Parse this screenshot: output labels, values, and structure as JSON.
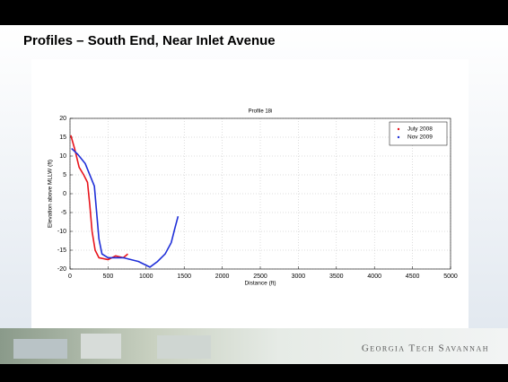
{
  "slide": {
    "title": "Profiles – South End, Near Inlet Avenue",
    "footer": "Georgia Tech Savannah"
  },
  "chart_data": {
    "type": "line",
    "title": "Profile 18i",
    "x_label": "Distance (ft)",
    "y_label": "Elevation above MLLW (ft)",
    "xlim": [
      0,
      5000
    ],
    "xticks": [
      0,
      500,
      1000,
      1500,
      2000,
      2500,
      3000,
      3500,
      4000,
      4500,
      5000
    ],
    "ylim": [
      -20,
      20
    ],
    "yticks": [
      -20,
      -15,
      -10,
      -5,
      0,
      5,
      10,
      15,
      20
    ],
    "grid": true,
    "legend": "upper right",
    "series": [
      {
        "name": "July 2008",
        "color": "#e8141c",
        "x": [
          10,
          60,
          120,
          180,
          230,
          260,
          290,
          330,
          380,
          500,
          600,
          700,
          760
        ],
        "values": [
          15.5,
          12,
          7,
          5,
          3,
          -3,
          -10,
          -15,
          -17,
          -17.5,
          -16.5,
          -17,
          -16
        ]
      },
      {
        "name": "Nov 2009",
        "color": "#1f2fd8",
        "x": [
          20,
          100,
          200,
          280,
          320,
          350,
          380,
          420,
          500,
          700,
          900,
          1050,
          1150,
          1250,
          1330,
          1380,
          1420
        ],
        "values": [
          12,
          10.5,
          8,
          4,
          2,
          -5,
          -12,
          -16,
          -17,
          -17,
          -18,
          -19.5,
          -18,
          -16,
          -13,
          -9,
          -6
        ]
      }
    ]
  }
}
